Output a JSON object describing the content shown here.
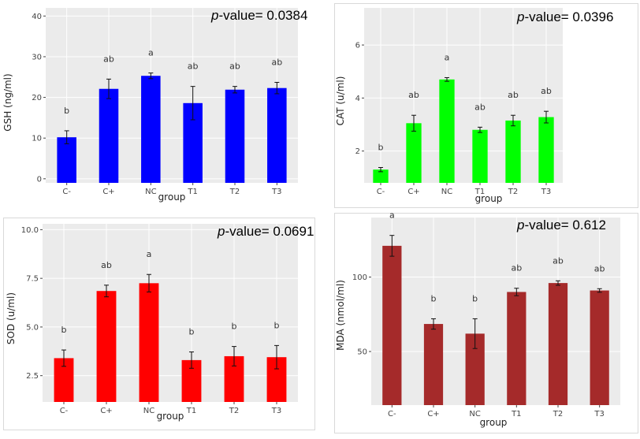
{
  "chart_data": [
    {
      "type": "bar",
      "title": "",
      "pvalue_prefix": "p",
      "pvalue_text": "-value= 0.0384",
      "xlabel": "group",
      "ylabel": "GSH (ng/ml)",
      "categories": [
        "C-",
        "C+",
        "NC",
        "T1",
        "T2",
        "T3"
      ],
      "values": [
        10.2,
        22.1,
        25.3,
        18.6,
        21.9,
        22.3
      ],
      "errors": [
        1.6,
        2.4,
        0.7,
        4.1,
        0.8,
        1.4
      ],
      "letters": [
        "b",
        "ab",
        "a",
        "ab",
        "ab",
        "ab"
      ],
      "ylim": [
        -1,
        42
      ],
      "yticks": [
        0,
        10,
        20,
        30,
        40
      ],
      "ytick_labels": [
        "0",
        "10",
        "20",
        "30",
        "40"
      ],
      "color": "#0000ff"
    },
    {
      "type": "bar",
      "title": "",
      "pvalue_prefix": "p",
      "pvalue_text": "-value= 0.0396",
      "xlabel": "group",
      "ylabel": "CAT (u/ml)",
      "categories": [
        "C-",
        "C+",
        "NC",
        "T1",
        "T2",
        "T3"
      ],
      "values": [
        1.3,
        3.05,
        4.7,
        2.8,
        3.15,
        3.28
      ],
      "errors": [
        0.08,
        0.3,
        0.07,
        0.1,
        0.2,
        0.22
      ],
      "letters": [
        "b",
        "ab",
        "a",
        "ab",
        "ab",
        "ab"
      ],
      "ylim": [
        0.8,
        7.4
      ],
      "yticks": [
        2,
        4,
        6
      ],
      "ytick_labels": [
        "2",
        "4",
        "6"
      ],
      "color": "#00ff00"
    },
    {
      "type": "bar",
      "title": "",
      "pvalue_prefix": "p",
      "pvalue_text": "-value= 0.0691",
      "xlabel": "group",
      "ylabel": "SOD (u/ml)",
      "categories": [
        "C-",
        "C+",
        "NC",
        "T1",
        "T2",
        "T3"
      ],
      "values": [
        3.4,
        6.85,
        7.25,
        3.3,
        3.5,
        3.45
      ],
      "errors": [
        0.42,
        0.3,
        0.45,
        0.42,
        0.5,
        0.6
      ],
      "letters": [
        "b",
        "ab",
        "a",
        "b",
        "b",
        "b"
      ],
      "ylim": [
        1.15,
        10.3
      ],
      "yticks": [
        2.5,
        5.0,
        7.5,
        10.0
      ],
      "ytick_labels": [
        "2.5",
        "5.0",
        "7.5",
        "10.0"
      ],
      "color": "#ff0000"
    },
    {
      "type": "bar",
      "title": "",
      "pvalue_prefix": "p",
      "pvalue_text": "-value= 0.612",
      "xlabel": "group",
      "ylabel": "MDA (nmol/ml)",
      "categories": [
        "C-",
        "C+",
        "NC",
        "T1",
        "T2",
        "T3"
      ],
      "values": [
        121,
        68.5,
        62,
        90,
        96,
        91
      ],
      "errors": [
        7,
        3.5,
        10,
        2.5,
        1.5,
        1.2
      ],
      "letters": [
        "a",
        "b",
        "b",
        "ab",
        "ab",
        "ab"
      ],
      "ylim": [
        14,
        140
      ],
      "yticks": [
        50,
        100
      ],
      "ytick_labels": [
        "50",
        "100"
      ],
      "color": "#a52a2a"
    }
  ]
}
